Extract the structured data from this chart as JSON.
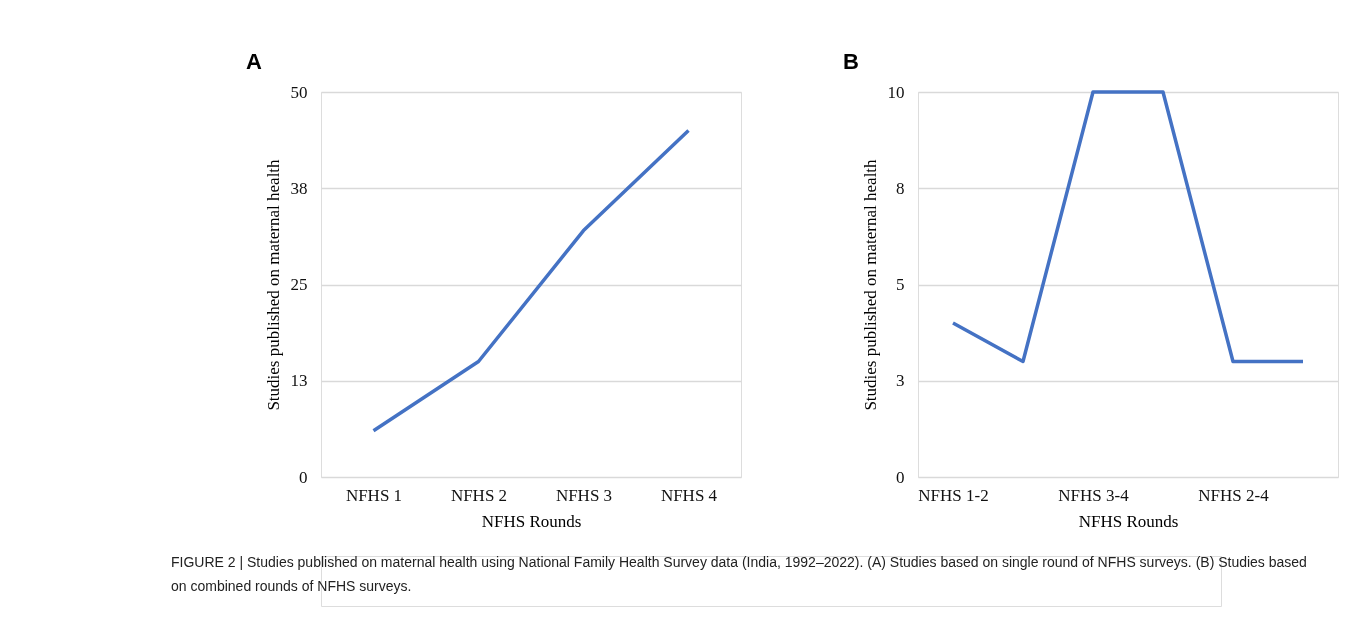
{
  "chart_data": [
    {
      "type": "line",
      "xlabel": "NFHS Rounds",
      "ylabel": "Studies published on maternal health",
      "categories": [
        "NFHS 1",
        "NFHS 2",
        "NFHS 3",
        "NFHS 4"
      ],
      "series": [
        {
          "color": "#4472c4",
          "values": [
            6,
            15,
            32,
            45
          ]
        }
      ],
      "ylim": [
        0,
        50
      ],
      "yticks": [
        0,
        {
          "value": 12.5,
          "label": "13"
        },
        25,
        {
          "value": 37.5,
          "label": "38"
        },
        50
      ],
      "grid": "y",
      "marker": "none",
      "line_style": "solid",
      "annotations": [
        "A",
        "FIGURE 2 | Studies published on maternal health using National Family Health Survey data (India, 1992–2022). (A) Studies based on single round of NFHS surveys. (B) Studies based on combined rounds of NFHS surveys."
      ]
    },
    {
      "type": "line",
      "xlabel": "NFHS Rounds",
      "ylabel": "Studies published on maternal health",
      "categories": [
        "NFHS 1-2",
        null,
        "NFHS 3-4",
        null,
        "NFHS 2-4",
        null
      ],
      "series": [
        {
          "color": "#4472c4",
          "values": [
            4,
            3,
            10,
            10,
            3,
            3
          ]
        }
      ],
      "ylim": [
        0,
        10
      ],
      "yticks": [
        0,
        {
          "value": 2.5,
          "label": "3"
        },
        5,
        {
          "value": 7.5,
          "label": "8"
        },
        10
      ],
      "grid": "y",
      "marker": "none",
      "line_style": "solid",
      "annotations": [
        "B"
      ]
    }
  ]
}
